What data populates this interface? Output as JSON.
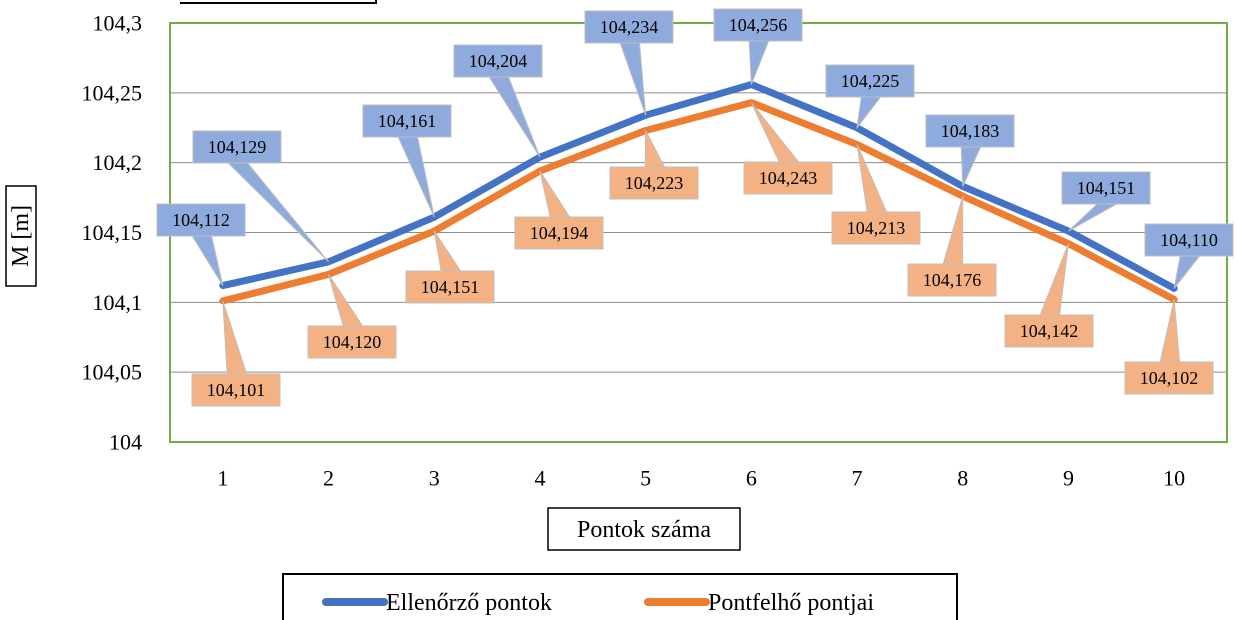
{
  "chart_data": {
    "type": "line",
    "title": "",
    "xlabel": "Pontok száma",
    "ylabel": "M [m]",
    "categories": [
      "1",
      "2",
      "3",
      "4",
      "5",
      "6",
      "7",
      "8",
      "9",
      "10"
    ],
    "ylim": [
      104,
      104.3
    ],
    "yticks": [
      104,
      104.05,
      104.1,
      104.15,
      104.2,
      104.25,
      104.3
    ],
    "ytick_labels": [
      "104",
      "104,05",
      "104,1",
      "104,15",
      "104,2",
      "104,25",
      "104,3"
    ],
    "grid": true,
    "legend_position": "bottom",
    "series": [
      {
        "name": "Ellenőrző pontok",
        "color": "#4472C4",
        "label_color": "#8FAADC",
        "values": [
          104.112,
          104.129,
          104.161,
          104.204,
          104.234,
          104.256,
          104.225,
          104.183,
          104.151,
          104.11
        ],
        "labels": [
          "104,112",
          "104,129",
          "104,161",
          "104,204",
          "104,234",
          "104,256",
          "104,225",
          "104,183",
          "104,151",
          "104,110"
        ]
      },
      {
        "name": "Pontfelhő pontjai",
        "color": "#ED7D31",
        "label_color": "#F4B183",
        "values": [
          104.101,
          104.12,
          104.151,
          104.194,
          104.223,
          104.243,
          104.213,
          104.176,
          104.142,
          104.102
        ],
        "labels": [
          "104,101",
          "104,120",
          "104,151",
          "104,194",
          "104,223",
          "104,243",
          "104,213",
          "104,176",
          "104,142",
          "104,102"
        ]
      }
    ]
  }
}
